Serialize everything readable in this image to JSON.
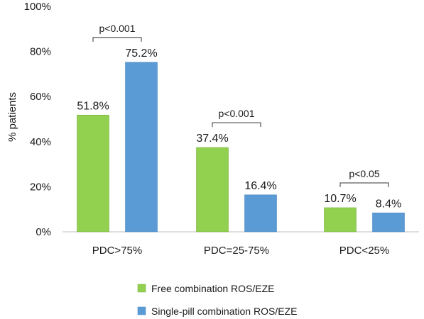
{
  "chart_data": {
    "type": "bar",
    "title": "",
    "xlabel": "",
    "ylabel": "% patients",
    "ylim": [
      0,
      100
    ],
    "yticks": [
      "0%",
      "20%",
      "40%",
      "60%",
      "80%",
      "100%"
    ],
    "categories": [
      "PDC>75%",
      "PDC=25-75%",
      "PDC<25%"
    ],
    "series": [
      {
        "name": "Free combination ROS/EZE",
        "color": "#92d050",
        "values": [
          51.8,
          37.4,
          10.7
        ],
        "labels": [
          "51.8%",
          "37.4%",
          "10.7%"
        ]
      },
      {
        "name": "Single-pill combination ROS/EZE",
        "color": "#5b9bd5",
        "values": [
          75.2,
          16.4,
          8.4
        ],
        "labels": [
          "75.2%",
          "16.4%",
          "8.4%"
        ]
      }
    ],
    "annotations": [
      "p<0.001",
      "p<0.001",
      "p<0.05"
    ],
    "legend_position": "bottom",
    "grid": false
  }
}
